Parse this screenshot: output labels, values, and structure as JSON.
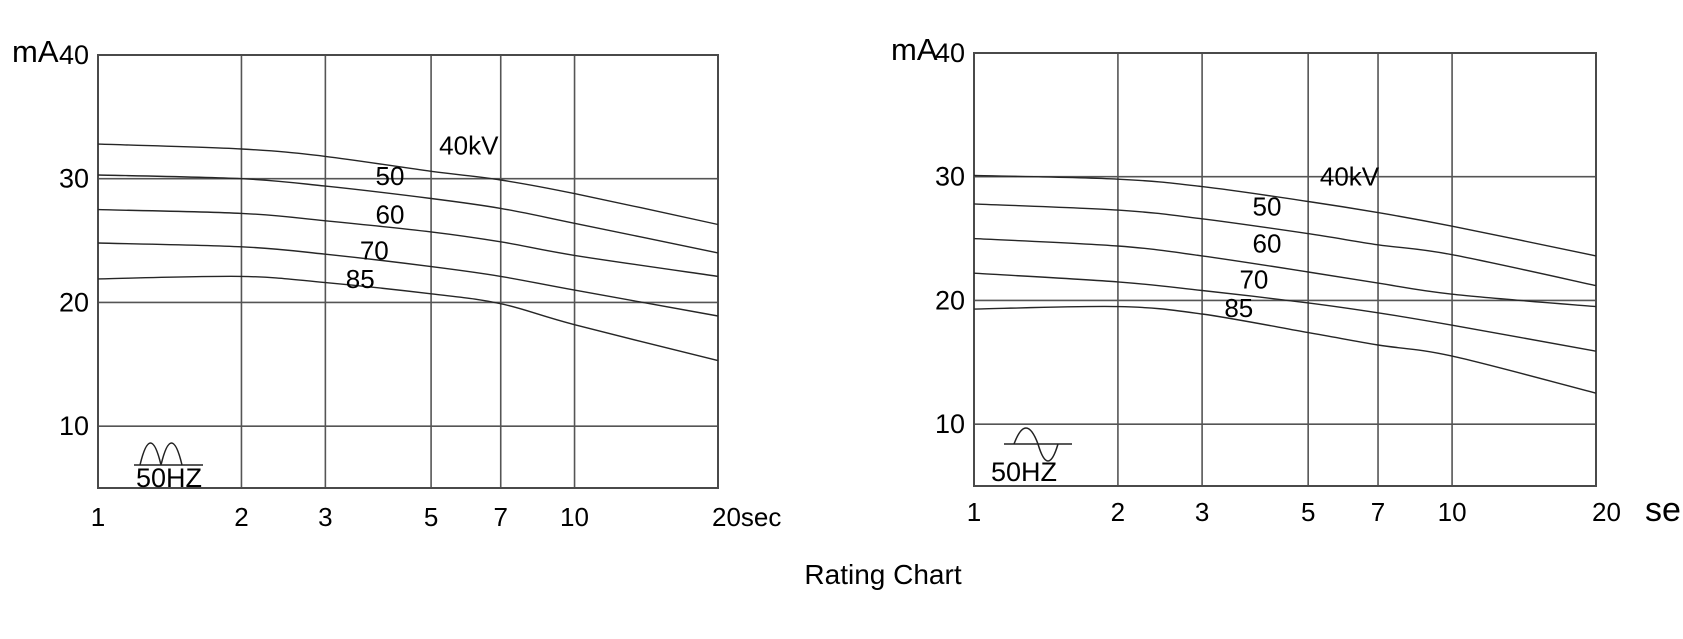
{
  "title": "Rating Chart",
  "chart_data": [
    {
      "type": "line",
      "position": "left",
      "ylabel": "mA",
      "x_scale": "log",
      "xlim": [
        1,
        20
      ],
      "ylim": [
        5,
        40
      ],
      "grid": true,
      "x_ticks": [
        1,
        2,
        3,
        5,
        7,
        10,
        20
      ],
      "x_tick_labels": [
        "1",
        "2",
        "3",
        "5",
        "7",
        "10",
        "20sec"
      ],
      "x_unit_label": "",
      "y_ticks": [
        40,
        30,
        20,
        10
      ],
      "waveform_icon": "full-wave-rectified-icon",
      "frequency_label": "50HZ",
      "x": [
        1,
        2,
        3,
        5,
        7,
        10,
        20
      ],
      "series": [
        {
          "name": "40kV",
          "label": "40kV",
          "label_at": {
            "sec": 6.0,
            "mA": 32.7
          },
          "values": [
            32.8,
            32.4,
            31.8,
            30.6,
            29.9,
            28.8,
            26.3
          ]
        },
        {
          "name": "50kV",
          "label": "50",
          "label_at": {
            "sec": 4.1,
            "mA": 30.2
          },
          "values": [
            30.3,
            30.0,
            29.4,
            28.4,
            27.6,
            26.4,
            24.0
          ]
        },
        {
          "name": "60kV",
          "label": "60",
          "label_at": {
            "sec": 4.1,
            "mA": 27.1
          },
          "values": [
            27.5,
            27.2,
            26.6,
            25.7,
            24.9,
            23.8,
            22.1
          ]
        },
        {
          "name": "70kV",
          "label": "70",
          "label_at": {
            "sec": 3.8,
            "mA": 24.2
          },
          "values": [
            24.8,
            24.5,
            23.9,
            22.9,
            22.1,
            21.0,
            18.9
          ]
        },
        {
          "name": "85kV",
          "label": "85",
          "label_at": {
            "sec": 3.55,
            "mA": 21.9
          },
          "values": [
            21.9,
            22.1,
            21.6,
            20.7,
            19.9,
            18.2,
            15.3
          ]
        }
      ]
    },
    {
      "type": "line",
      "position": "right",
      "ylabel": "mA",
      "x_scale": "log",
      "xlim": [
        1,
        20
      ],
      "ylim": [
        5,
        40
      ],
      "grid": true,
      "x_ticks": [
        1,
        2,
        3,
        5,
        7,
        10,
        20
      ],
      "x_tick_labels": [
        "1",
        "2",
        "3",
        "5",
        "7",
        "10",
        "20"
      ],
      "x_unit_label": "se",
      "y_ticks": [
        40,
        30,
        20,
        10
      ],
      "waveform_icon": "sine-wave-icon",
      "frequency_label": "50HZ",
      "x": [
        1,
        2,
        3,
        5,
        7,
        10,
        20
      ],
      "series": [
        {
          "name": "40kV",
          "label": "40kV",
          "label_at": {
            "sec": 6.1,
            "mA": 30.0
          },
          "values": [
            30.1,
            29.8,
            29.2,
            28.0,
            27.1,
            26.0,
            23.6
          ]
        },
        {
          "name": "50kV",
          "label": "50",
          "label_at": {
            "sec": 4.1,
            "mA": 27.6
          },
          "values": [
            27.8,
            27.3,
            26.6,
            25.4,
            24.5,
            23.7,
            21.2
          ]
        },
        {
          "name": "60kV",
          "label": "60",
          "label_at": {
            "sec": 4.1,
            "mA": 24.6
          },
          "values": [
            25.0,
            24.4,
            23.6,
            22.3,
            21.4,
            20.5,
            19.5
          ]
        },
        {
          "name": "70kV",
          "label": "70",
          "label_at": {
            "sec": 3.85,
            "mA": 21.7
          },
          "values": [
            22.2,
            21.5,
            20.8,
            19.8,
            19.0,
            18.0,
            15.9
          ]
        },
        {
          "name": "85kV",
          "label": "85",
          "label_at": {
            "sec": 3.58,
            "mA": 19.4
          },
          "values": [
            19.3,
            19.5,
            18.9,
            17.4,
            16.4,
            15.5,
            12.5
          ]
        }
      ]
    }
  ]
}
